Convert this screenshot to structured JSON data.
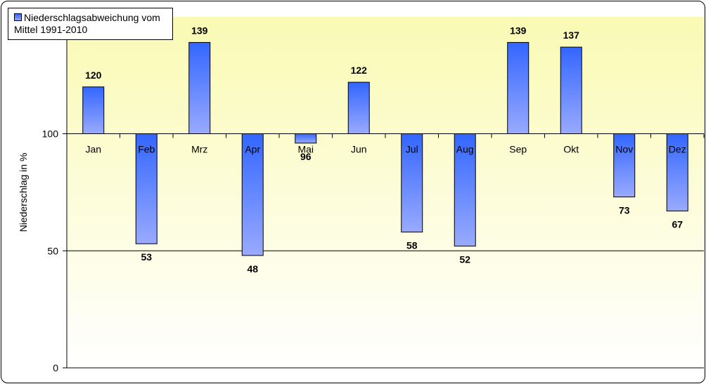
{
  "chart_data": {
    "type": "bar",
    "baseline": 100,
    "categories": [
      "Jan",
      "Feb",
      "Mrz",
      "Apr",
      "Mai",
      "Jun",
      "Jul",
      "Aug",
      "Sep",
      "Okt",
      "Nov",
      "Dez"
    ],
    "series": [
      {
        "name": "Niederschlagsabweichung vom Mittel 1991-2010",
        "values": [
          120,
          53,
          139,
          48,
          96,
          122,
          58,
          52,
          139,
          137,
          73,
          67
        ]
      }
    ],
    "ylabel": "Niederschlag in %",
    "xlabel": "",
    "ylim": [
      0,
      140
    ],
    "yticks": [
      0,
      50,
      100
    ],
    "grid": true,
    "legend_position": "top-left",
    "colors": {
      "bar_top": "#3366ff",
      "bar_bottom": "#99aaff",
      "plot_top": "#fafab4",
      "plot_bottom": "#ffffff"
    }
  },
  "legend": {
    "line1": "Niederschlagsabweichung vom",
    "line2": "Mittel 1991-2010"
  }
}
